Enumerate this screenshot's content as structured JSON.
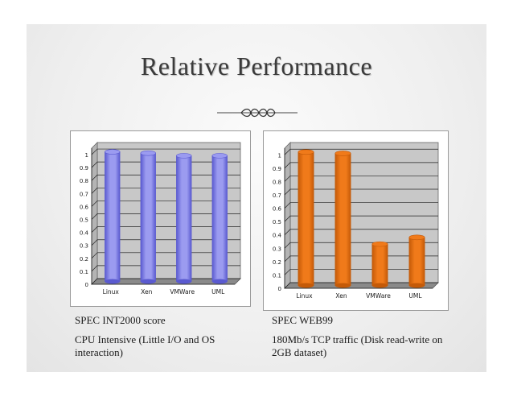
{
  "slide": {
    "title": "Relative Performance"
  },
  "chart_data": [
    {
      "type": "bar",
      "categories": [
        "Linux",
        "Xen",
        "VMWare",
        "UML"
      ],
      "values": [
        1.0,
        0.99,
        0.97,
        0.97
      ],
      "yticks": [
        "0",
        "0.1",
        "0.2",
        "0.3",
        "0.4",
        "0.5",
        "0.6",
        "0.7",
        "0.8",
        "0.9",
        "1"
      ],
      "ylim": [
        0,
        1.05
      ],
      "grid": true,
      "style": "3d-cylinder",
      "color": "#9b9bf0",
      "color_dark": "#5a5ad0",
      "caption_title": "SPEC INT2000 score",
      "caption_desc": "CPU Intensive (Little I/O and OS interaction)"
    },
    {
      "type": "bar",
      "categories": [
        "Linux",
        "Xen",
        "VMWare",
        "UML"
      ],
      "values": [
        1.0,
        0.99,
        0.31,
        0.36
      ],
      "yticks": [
        "0",
        "0.1",
        "0.2",
        "0.3",
        "0.4",
        "0.5",
        "0.6",
        "0.7",
        "0.8",
        "0.9",
        "1"
      ],
      "ylim": [
        0,
        1.05
      ],
      "grid": true,
      "style": "3d-cylinder",
      "color": "#f07a1a",
      "color_dark": "#c45a08",
      "caption_title": "SPEC WEB99",
      "caption_desc": "180Mb/s TCP traffic (Disk read-write on 2GB dataset)"
    }
  ]
}
